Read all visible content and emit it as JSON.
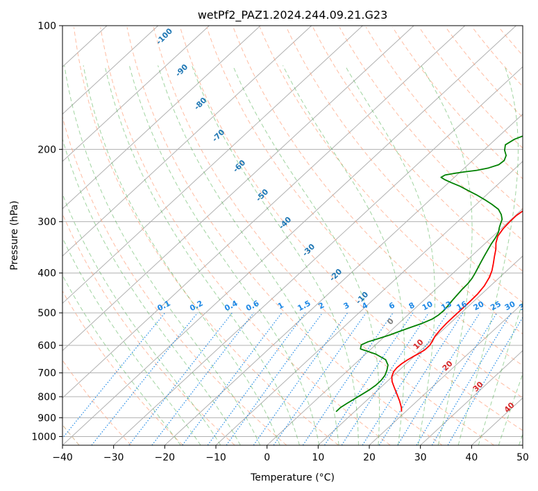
{
  "chart_data": {
    "type": "line",
    "title": "wetPf2_PAZ1.2024.244.09.21.G23",
    "xlabel": "Temperature (°C)",
    "ylabel": "Pressure (hPa)",
    "xlim": [
      -40,
      50
    ],
    "ylim": [
      1050,
      100
    ],
    "y_scale": "log",
    "x_ticks": [
      "−40",
      "−30",
      "−20",
      "−10",
      "0",
      "10",
      "20",
      "30",
      "40",
      "50"
    ],
    "x_tick_values": [
      -40,
      -30,
      -20,
      -10,
      0,
      10,
      20,
      30,
      40,
      50
    ],
    "y_ticks": [
      "100",
      "200",
      "300",
      "400",
      "500",
      "600",
      "700",
      "800",
      "900",
      "1000"
    ],
    "y_tick_values": [
      100,
      200,
      300,
      400,
      500,
      600,
      700,
      800,
      900,
      1000
    ],
    "grid": true,
    "colors": {
      "temperature": "#ff0000",
      "dewpoint": "#008000",
      "isotherm": "#b0b0b0",
      "dry_adiabat": "#ffa07a",
      "moist_adiabat": "#2ca02c",
      "mixing_ratio": "#1e88e5",
      "dry_label": "#1f77b4",
      "moist_label": "#d62728",
      "moist_zero_label": "#808080"
    },
    "series": [
      {
        "key": "temperature",
        "pressure": [
          870,
          850,
          820,
          790,
          760,
          735,
          715,
          695,
          680,
          665,
          652,
          640,
          628,
          615,
          600,
          585,
          570,
          550,
          530,
          510,
          490,
          470,
          450,
          430,
          410,
          395,
          380,
          365,
          350,
          338,
          325,
          312,
          300,
          290,
          280,
          270,
          262,
          256,
          251,
          246,
          240,
          232,
          222,
          212,
          202,
          192,
          182,
          172,
          162,
          152,
          142,
          135,
          128,
          120,
          113,
          107,
          103,
          100
        ],
        "values": [
          19.2,
          18.3,
          16.6,
          14.7,
          12.7,
          11.0,
          9.9,
          9.2,
          9.0,
          9.1,
          9.4,
          9.8,
          10.3,
          10.7,
          10.7,
          10.3,
          9.8,
          9.5,
          9.3,
          9.3,
          9.3,
          9.3,
          9.2,
          8.8,
          8.0,
          7.1,
          5.9,
          4.6,
          3.3,
          2.0,
          0.9,
          0.4,
          0.2,
          0.2,
          0.6,
          1.7,
          3.6,
          5.8,
          8.0,
          10.2,
          12.5,
          14.9,
          17.1,
          18.4,
          19.2,
          19.7,
          20.3,
          21.4,
          22.4,
          22.8,
          22.9,
          23.6,
          25.2,
          26.9,
          27.9,
          28.9,
          29.3,
          29.4
        ]
      },
      {
        "key": "dewpoint",
        "pressure": [
          870,
          850,
          830,
          810,
          790,
          770,
          750,
          730,
          710,
          690,
          670,
          650,
          630,
          612,
          598,
          588,
          578,
          566,
          554,
          542,
          530,
          518,
          506,
          494,
          480,
          466,
          452,
          438,
          424,
          412,
          400,
          388,
          376,
          364,
          352,
          340,
          328,
          318,
          310,
          303,
          296,
          288,
          280,
          272,
          265,
          258,
          252,
          246,
          241,
          237,
          234,
          231,
          229,
          227,
          225,
          222,
          218,
          213,
          207,
          201,
          195,
          189,
          183,
          178,
          172,
          166,
          162,
          158,
          154,
          150,
          146,
          141,
          136,
          130,
          124,
          118,
          113,
          108,
          104,
          100
        ],
        "values": [
          6.4,
          6.4,
          6.8,
          7.3,
          7.8,
          8.3,
          8.6,
          8.6,
          8.3,
          7.6,
          6.7,
          5.1,
          2.0,
          -2.1,
          -2.8,
          -2.1,
          -0.8,
          0.7,
          1.9,
          3.2,
          4.6,
          5.6,
          6.0,
          6.1,
          5.9,
          5.6,
          5.4,
          5.2,
          5.1,
          4.8,
          4.3,
          3.7,
          3.1,
          2.5,
          1.9,
          1.3,
          0.8,
          0.2,
          -0.6,
          -1.2,
          -1.8,
          -3.0,
          -4.6,
          -7.0,
          -9.4,
          -12.0,
          -14.5,
          -17.0,
          -19.5,
          -21.4,
          -22.6,
          -22.3,
          -21.0,
          -19.2,
          -17.1,
          -15.3,
          -14.0,
          -13.8,
          -14.5,
          -15.9,
          -16.9,
          -16.3,
          -14.6,
          -13.4,
          -13.8,
          -15.3,
          -16.2,
          -15.6,
          -14.2,
          -12.4,
          -11.2,
          -10.3,
          -9.6,
          -8.7,
          -7.3,
          -5.4,
          -3.8,
          -2.4,
          -1.2,
          0.0
        ]
      }
    ],
    "dry_adiabat_labels": [
      "-100",
      "-90",
      "-80",
      "-70",
      "-60",
      "-50",
      "-40",
      "-30",
      "-20",
      "-10"
    ],
    "moist_adiabat_labels": [
      "0",
      "10",
      "20",
      "30",
      "40"
    ],
    "mixing_ratio_labels": [
      "0.1",
      "0.2",
      "0.4",
      "0.6",
      "1",
      "1.5",
      "2",
      "3",
      "4",
      "6",
      "8",
      "10",
      "13",
      "16",
      "20",
      "25",
      "30",
      "36"
    ]
  }
}
